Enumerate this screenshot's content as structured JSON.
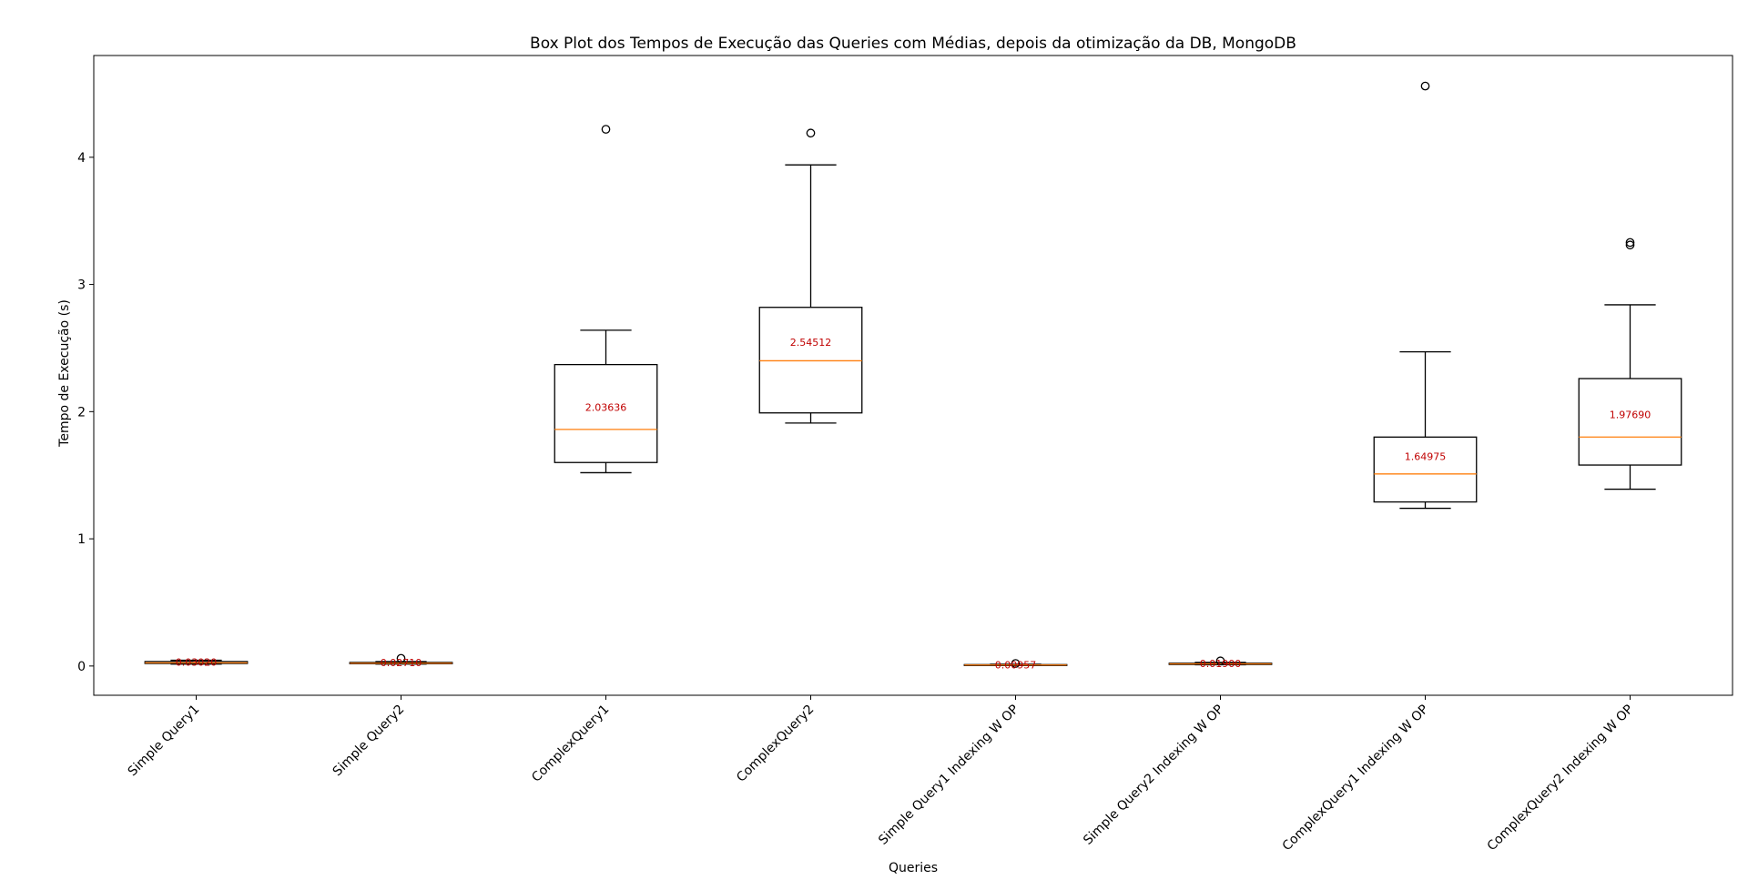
{
  "chart_data": {
    "type": "boxplot",
    "title": "Box Plot dos Tempos de Execução das Queries com Médias, depois da otimização da DB, MongoDB",
    "xlabel": "Queries",
    "ylabel": "Tempo de Execução (s)",
    "ylim": [
      -0.23,
      4.8
    ],
    "yticks": [
      0,
      1,
      2,
      3,
      4
    ],
    "grid": false,
    "colors": {
      "box": "#000000",
      "median": "#ff7f0e",
      "mean_label": "#c00000"
    },
    "categories": [
      "Simple Query1",
      "Simple Query2",
      "ComplexQuery1",
      "ComplexQuery2",
      "Simple Query1 Indexing W OP",
      "Simple Query2 Indexing W OP",
      "ComplexQuery1 Indexing W OP",
      "ComplexQuery2 Indexing W OP"
    ],
    "boxes": [
      {
        "whisker_low": 0.015,
        "q1": 0.02,
        "median": 0.025,
        "q3": 0.035,
        "whisker_high": 0.045,
        "outliers": [],
        "mean": 0.0302,
        "mean_label": "0.03020"
      },
      {
        "whisker_low": 0.015,
        "q1": 0.018,
        "median": 0.022,
        "q3": 0.028,
        "whisker_high": 0.035,
        "outliers": [
          0.06
        ],
        "mean": 0.0271,
        "mean_label": "0.02710"
      },
      {
        "whisker_low": 1.52,
        "q1": 1.6,
        "median": 1.86,
        "q3": 2.37,
        "whisker_high": 2.64,
        "outliers": [
          4.22
        ],
        "mean": 2.03636,
        "mean_label": "2.03636"
      },
      {
        "whisker_low": 1.91,
        "q1": 1.99,
        "median": 2.4,
        "q3": 2.82,
        "whisker_high": 3.94,
        "outliers": [
          4.19
        ],
        "mean": 2.54512,
        "mean_label": "2.54512"
      },
      {
        "whisker_low": 0.004,
        "q1": 0.006,
        "median": 0.008,
        "q3": 0.011,
        "whisker_high": 0.014,
        "outliers": [
          0.02
        ],
        "mean": 0.00957,
        "mean_label": "0.00957"
      },
      {
        "whisker_low": 0.01,
        "q1": 0.012,
        "median": 0.017,
        "q3": 0.022,
        "whisker_high": 0.028,
        "outliers": [
          0.04
        ],
        "mean": 0.019,
        "mean_label": "0.01900"
      },
      {
        "whisker_low": 1.24,
        "q1": 1.29,
        "median": 1.51,
        "q3": 1.8,
        "whisker_high": 2.47,
        "outliers": [
          4.56
        ],
        "mean": 1.64975,
        "mean_label": "1.64975"
      },
      {
        "whisker_low": 1.39,
        "q1": 1.58,
        "median": 1.8,
        "q3": 2.26,
        "whisker_high": 2.84,
        "outliers": [
          3.31,
          3.33
        ],
        "mean": 1.9769,
        "mean_label": "1.97690"
      }
    ]
  }
}
